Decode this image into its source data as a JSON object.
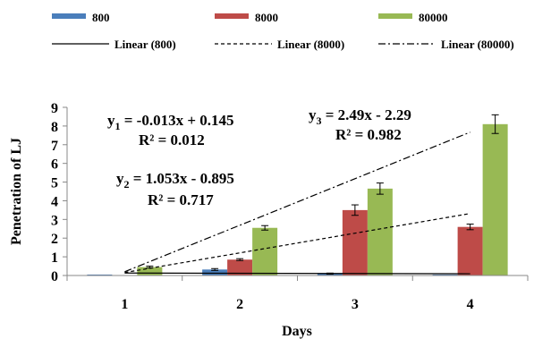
{
  "chart_data": {
    "type": "bar",
    "categories": [
      "1",
      "2",
      "3",
      "4"
    ],
    "series": [
      {
        "name": "800",
        "color": "#4a7ebb",
        "values": [
          0.05,
          0.32,
          0.1,
          0.05
        ],
        "errors": [
          0,
          0.05,
          0.03,
          0
        ]
      },
      {
        "name": "8000",
        "color": "#be4b48",
        "values": [
          0,
          0.85,
          3.5,
          2.6
        ],
        "errors": [
          0,
          0.05,
          0.28,
          0.15
        ]
      },
      {
        "name": "80000",
        "color": "#98b954",
        "values": [
          0.45,
          2.55,
          4.65,
          8.1
        ],
        "errors": [
          0.05,
          0.12,
          0.3,
          0.5
        ]
      }
    ],
    "trendlines": [
      {
        "name": "Linear (800)",
        "style": "solid",
        "slope": -0.013,
        "intercept": 0.145
      },
      {
        "name": "Linear (8000)",
        "style": "dashed",
        "slope": 1.053,
        "intercept": -0.895
      },
      {
        "name": "Linear (80000)",
        "style": "dashdot",
        "slope": 2.49,
        "intercept": -2.29
      }
    ],
    "equations": [
      {
        "label": "y",
        "sub": "1",
        "rhs": " = -0.013x + 0.145",
        "r2": "R² = 0.012"
      },
      {
        "label": "y",
        "sub": "2",
        "rhs": " = 1.053x - 0.895",
        "r2": "R² = 0.717"
      },
      {
        "label": "y",
        "sub": "3",
        "rhs": " = 2.49x - 2.29",
        "r2": "R² = 0.982"
      }
    ],
    "xlabel": "Days",
    "ylabel": "Penetration of LJ",
    "ylim": [
      0,
      9
    ],
    "yticks": [
      "0",
      "1",
      "2",
      "3",
      "4",
      "5",
      "6",
      "7",
      "8",
      "9"
    ],
    "legend_position": "top",
    "grid": false
  }
}
